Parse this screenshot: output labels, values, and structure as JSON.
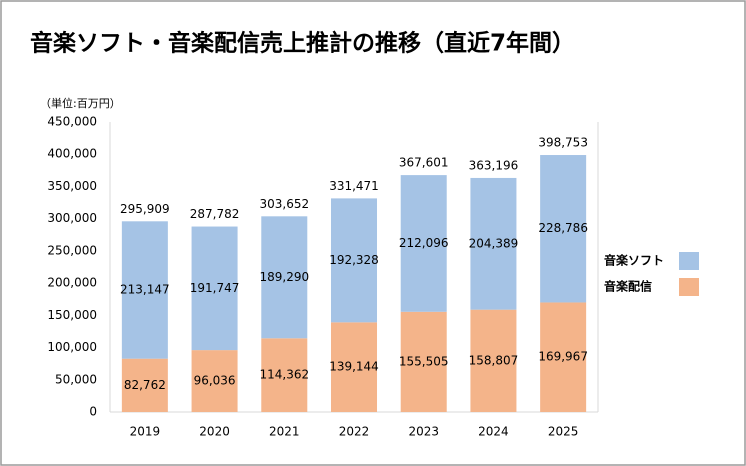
{
  "chart_data": {
    "type": "stacked-bar",
    "title": "音楽ソフト・音楽配信売上推計の推移（直近7年間）",
    "y_unit_label": "（単位:百万円）",
    "categories": [
      "2019",
      "2020",
      "2021",
      "2022",
      "2023",
      "2024",
      "2025"
    ],
    "series": [
      {
        "name": "音楽配信",
        "color": "#f4b48a",
        "values": [
          82762,
          96036,
          114362,
          139144,
          155505,
          158807,
          169967
        ],
        "value_labels": [
          "82,762",
          "96,036",
          "114,362",
          "139,144",
          "155,505",
          "158,807",
          "169,967"
        ]
      },
      {
        "name": "音楽ソフト",
        "color": "#a5c3e5",
        "values": [
          213147,
          191747,
          189290,
          192328,
          212096,
          204389,
          228786
        ],
        "value_labels": [
          "213,147",
          "191,747",
          "189,290",
          "192,328",
          "212,096",
          "204,389",
          "228,786"
        ]
      }
    ],
    "totals": [
      295909,
      287782,
      303652,
      331471,
      367601,
      363196,
      398753
    ],
    "total_labels": [
      "295,909",
      "287,782",
      "303,652",
      "331,471",
      "367,601",
      "363,196",
      "398,753"
    ],
    "ylim": [
      0,
      450000
    ],
    "yticks": [
      0,
      {
        "value": 50000,
        "label": "50,000"
      },
      {
        "value": 100000,
        "label": "100,000"
      },
      {
        "value": 150000,
        "label": "150,000"
      },
      {
        "value": 200000,
        "label": "200,000"
      },
      {
        "value": 250000,
        "label": "250,000"
      },
      {
        "value": 300000,
        "label": "300,000"
      },
      {
        "value": 350000,
        "label": "350,000"
      },
      {
        "value": 400000,
        "label": "400,000"
      },
      {
        "value": 450000,
        "label": "450,000"
      }
    ],
    "grid": false,
    "legend": "right"
  }
}
